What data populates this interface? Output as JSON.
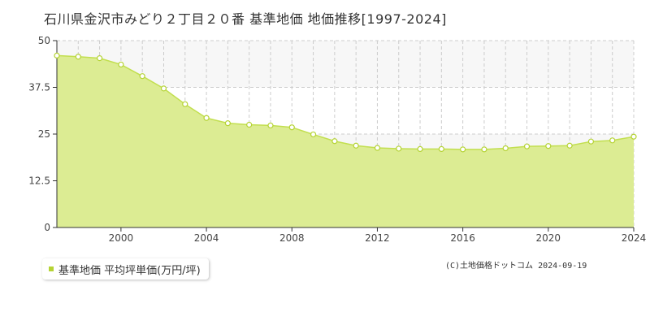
{
  "title": "石川県金沢市みどり２丁目２０番 基準地価 地価推移[1997-2024]",
  "copyright": "(C)土地価格ドットコム 2024-09-19",
  "colors": {
    "fill": "#dcec93",
    "line": "#c2df4f",
    "marker_fill": "#ffffff",
    "marker_stroke": "#b5d334",
    "legend_swatch": "#b5d334",
    "grid": "#cccccc",
    "band": "#f7f7f7"
  },
  "chart_data": {
    "type": "area",
    "title": "石川県金沢市みどり２丁目２０番 基準地価 地価推移[1997-2024]",
    "xlabel": "",
    "ylabel": "",
    "xlim": [
      1997,
      2024
    ],
    "ylim": [
      0,
      50
    ],
    "x_ticks": [
      2000,
      2004,
      2008,
      2012,
      2016,
      2020,
      2024
    ],
    "y_ticks": [
      "0",
      "12.5",
      "25",
      "37.5",
      "50"
    ],
    "y_tick_values": [
      0,
      12.5,
      25,
      37.5,
      50
    ],
    "grid": true,
    "legend_position": "bottom-left",
    "series": [
      {
        "name": "基準地価 平均坪単価(万円/坪)",
        "x": [
          1997,
          1998,
          1999,
          2000,
          2001,
          2002,
          2003,
          2004,
          2005,
          2006,
          2007,
          2008,
          2009,
          2010,
          2011,
          2012,
          2013,
          2014,
          2015,
          2016,
          2017,
          2018,
          2019,
          2020,
          2021,
          2022,
          2023,
          2024
        ],
        "values": [
          46.0,
          45.7,
          45.3,
          43.6,
          40.5,
          37.2,
          33.0,
          29.3,
          27.9,
          27.5,
          27.3,
          26.8,
          24.9,
          23.1,
          21.9,
          21.3,
          21.1,
          21.0,
          21.0,
          20.9,
          20.9,
          21.2,
          21.7,
          21.8,
          21.9,
          23.0,
          23.3,
          24.3
        ]
      }
    ]
  }
}
